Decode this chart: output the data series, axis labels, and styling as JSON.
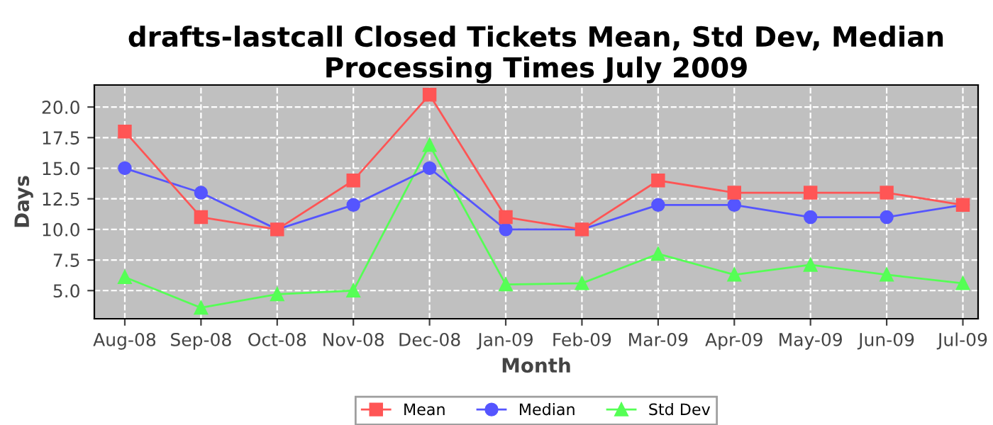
{
  "chart_data": {
    "type": "line",
    "title": "drafts-lastcall Closed Tickets Mean, Std Dev, Median Processing Times July 2009",
    "xlabel": "Month",
    "ylabel": "Days",
    "categories": [
      "Aug-08",
      "Sep-08",
      "Oct-08",
      "Nov-08",
      "Dec-08",
      "Jan-09",
      "Feb-09",
      "Mar-09",
      "Apr-09",
      "May-09",
      "Jun-09",
      "Jul-09"
    ],
    "series": [
      {
        "name": "Mean",
        "color": "#ff5555",
        "marker": "square",
        "values": [
          18,
          11,
          10,
          14,
          21,
          11,
          10,
          14,
          13,
          13,
          13,
          12
        ]
      },
      {
        "name": "Median",
        "color": "#5555ff",
        "marker": "circle",
        "values": [
          15,
          13,
          10,
          12,
          15,
          10,
          10,
          12,
          12,
          11,
          11,
          12
        ]
      },
      {
        "name": "Std Dev",
        "color": "#55ff55",
        "marker": "triangle",
        "values": [
          6.1,
          3.6,
          4.7,
          5.0,
          16.9,
          5.5,
          5.6,
          8.0,
          6.3,
          7.1,
          6.3,
          5.6
        ]
      }
    ],
    "ylim": [
      2.7,
      21.8
    ],
    "yticks": [
      {
        "value": 5,
        "label": "5.0"
      },
      {
        "value": 7.5,
        "label": "7.5"
      },
      {
        "value": 10,
        "label": "10.0"
      },
      {
        "value": 12.5,
        "label": "12.5"
      },
      {
        "value": 15,
        "label": "15.0"
      },
      {
        "value": 17.5,
        "label": "17.5"
      },
      {
        "value": 20,
        "label": "20.0"
      }
    ],
    "grid": true,
    "legend": "bottom",
    "line_style": "solid"
  }
}
